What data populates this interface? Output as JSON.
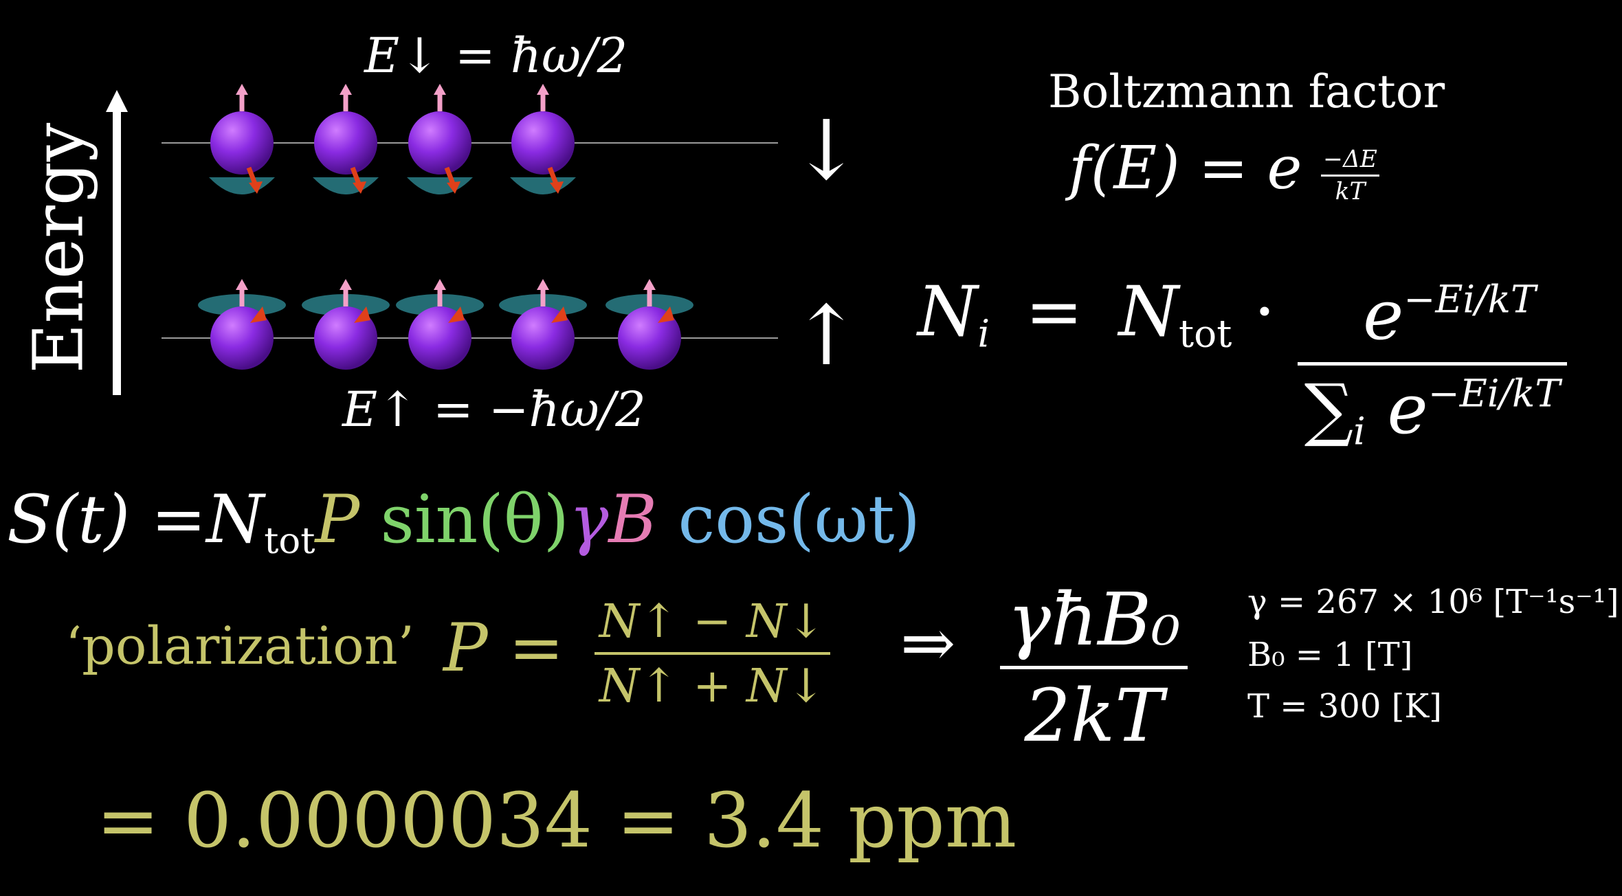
{
  "energy_axis": {
    "label": "Energy"
  },
  "levels": {
    "down_label": "E↓ = ħω/2",
    "up_label": "E↑ = −ħω/2",
    "down_arrow": "↓",
    "up_arrow": "↑",
    "down_spin_count": 4,
    "up_spin_count": 5
  },
  "boltzmann": {
    "title": "Boltzmann factor",
    "f_lhs": "f(E) = e",
    "exp_num": "−ΔE",
    "exp_den": "kT"
  },
  "population": {
    "lhs_N": "N",
    "lhs_i": "i",
    "eq": "=",
    "Ntot_N": "N",
    "Ntot_sub": "tot",
    "dot": "·",
    "num_e": "e",
    "num_exp": "−Ei/kT",
    "den_sum": "∑",
    "den_sub": "i",
    "den_e": "e",
    "den_exp": "−Ei/kT"
  },
  "signal": {
    "lhs": "S(t) =",
    "N": "N",
    "N_sub": "tot",
    "P": "P",
    "sin": "sin(θ)",
    "gamma": "γ",
    "B": "B",
    "cos": "cos(ωt)"
  },
  "polarization": {
    "label": "‘polarization’",
    "P_eq": "P =",
    "num": "N↑ − N↓",
    "den": "N↑ + N↓",
    "implies": "⇒",
    "approx_num": "γħB₀",
    "approx_den": "2kT"
  },
  "constants": {
    "gamma": "γ = 267 × 10⁶ [T⁻¹s⁻¹]",
    "B0": "B₀ = 1 [T]",
    "T": "T = 300 [K]"
  },
  "result": {
    "value": "= 0.0000034 = 3.4 ppm"
  }
}
